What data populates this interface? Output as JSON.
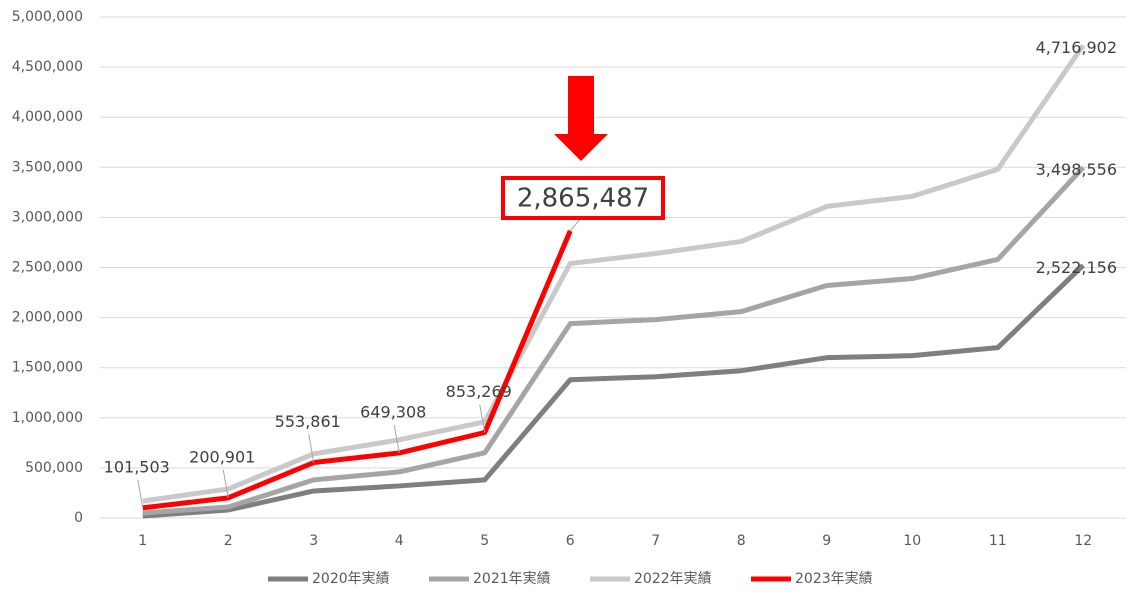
{
  "chart_data": {
    "type": "line",
    "categories": [
      "1",
      "2",
      "3",
      "4",
      "5",
      "6",
      "7",
      "8",
      "9",
      "10",
      "11",
      "12"
    ],
    "ylim": [
      0,
      5000000
    ],
    "yticks": [
      {
        "value": 0,
        "label": "0"
      },
      {
        "value": 500000,
        "label": "500,000"
      },
      {
        "value": 1000000,
        "label": "1,000,000"
      },
      {
        "value": 1500000,
        "label": "1,500,000"
      },
      {
        "value": 2000000,
        "label": "2,000,000"
      },
      {
        "value": 2500000,
        "label": "2,500,000"
      },
      {
        "value": 3000000,
        "label": "3,000,000"
      },
      {
        "value": 3500000,
        "label": "3,500,000"
      },
      {
        "value": 4000000,
        "label": "4,000,000"
      },
      {
        "value": 4500000,
        "label": "4,500,000"
      },
      {
        "value": 5000000,
        "label": "5,000,000"
      }
    ],
    "grid": true,
    "legend": "bottom",
    "series": [
      {
        "name": "2020年実績",
        "color": "#7f7f7f",
        "values": [
          20000,
          80000,
          270000,
          320000,
          380000,
          1380000,
          1410000,
          1470000,
          1600000,
          1620000,
          1700000,
          2522156
        ],
        "value_labels": [
          null,
          null,
          null,
          null,
          null,
          null,
          null,
          null,
          null,
          null,
          null,
          "2,522,156"
        ]
      },
      {
        "name": "2021年実績",
        "color": "#a5a5a5",
        "values": [
          50000,
          110000,
          380000,
          460000,
          650000,
          1940000,
          1980000,
          2060000,
          2320000,
          2390000,
          2580000,
          3498556
        ],
        "value_labels": [
          null,
          null,
          null,
          null,
          null,
          null,
          null,
          null,
          null,
          null,
          null,
          "3,498,556"
        ]
      },
      {
        "name": "2022年実績",
        "color": "#c9c9c9",
        "values": [
          170000,
          290000,
          640000,
          780000,
          960000,
          2540000,
          2640000,
          2760000,
          3110000,
          3210000,
          3480000,
          4716902
        ],
        "value_labels": [
          null,
          null,
          null,
          null,
          null,
          null,
          null,
          null,
          null,
          null,
          null,
          "4,716,902"
        ]
      },
      {
        "name": "2023年実績",
        "color": "#ff0000",
        "values": [
          101503,
          200901,
          553861,
          649308,
          853269,
          2865487,
          null,
          null,
          null,
          null,
          null,
          null
        ],
        "value_labels": [
          "101,503",
          "200,901",
          "553,861",
          "649,308",
          "853,269",
          "2,865,487",
          null,
          null,
          null,
          null,
          null,
          null
        ]
      }
    ]
  }
}
